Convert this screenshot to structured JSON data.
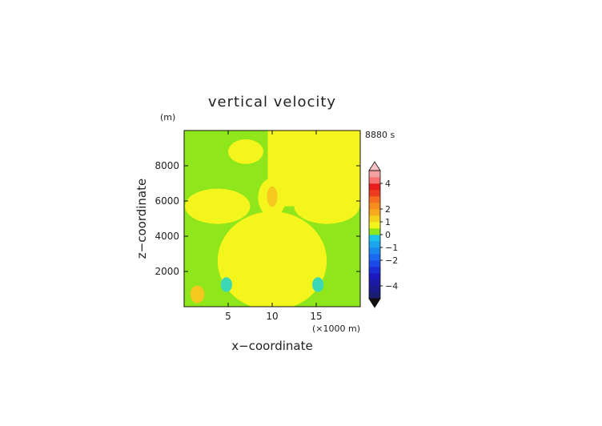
{
  "chart_data": {
    "type": "heatmap",
    "title": "vertical velocity",
    "time_label": "8880 s",
    "xlabel": "x−coordinate",
    "ylabel": "z−coordinate",
    "x_unit": "(×1000 m)",
    "y_unit": "(m)",
    "xlim": [
      0,
      20
    ],
    "ylim": [
      0,
      10000
    ],
    "x_ticks": [
      {
        "value": 5,
        "label": "5"
      },
      {
        "value": 10,
        "label": "10"
      },
      {
        "value": 15,
        "label": "15"
      }
    ],
    "y_ticks": [
      {
        "value": 2000,
        "label": "2000"
      },
      {
        "value": 4000,
        "label": "4000"
      },
      {
        "value": 6000,
        "label": "6000"
      },
      {
        "value": 8000,
        "label": "8000"
      }
    ],
    "background_color": "#8fe61a",
    "regions": [
      {
        "level": "0 to 0.5",
        "color": "#f5f51e",
        "shape": "rect",
        "x": [
          9.5,
          20
        ],
        "z": [
          5700,
          10000
        ]
      },
      {
        "level": "0 to 0.5",
        "color": "#f5f51e",
        "shape": "ellipse",
        "cx": 10,
        "cz": 2600,
        "rx": 6.2,
        "rz": 2800
      },
      {
        "level": "0 to 0.5",
        "color": "#f5f51e",
        "shape": "ellipse",
        "cx": 3.8,
        "cz": 5700,
        "rx": 3.7,
        "rz": 1000
      },
      {
        "level": "0 to 0.5",
        "color": "#f5f51e",
        "shape": "ellipse",
        "cx": 16.2,
        "cz": 5700,
        "rx": 3.7,
        "rz": 1000
      },
      {
        "level": "0 to 0.5",
        "color": "#f5f51e",
        "shape": "ellipse",
        "cx": 10,
        "cz": 6200,
        "rx": 1.6,
        "rz": 1100
      },
      {
        "level": "0 to 0.5",
        "color": "#f5f51e",
        "shape": "ellipse",
        "cx": 7,
        "cz": 8800,
        "rx": 2,
        "rz": 700
      },
      {
        "level": "0 to 0.5",
        "color": "#f5f51e",
        "shape": "ellipse",
        "cx": 13,
        "cz": 8800,
        "rx": 2,
        "rz": 700
      },
      {
        "level": "0 to 0.5",
        "color": "#f5f51e",
        "shape": "ellipse",
        "cx": 18.6,
        "cz": 8300,
        "rx": 1.2,
        "rz": 900
      },
      {
        "level": "0.5 to 1",
        "color": "#f5c81e",
        "shape": "ellipse",
        "cx": 10,
        "cz": 6250,
        "rx": 0.6,
        "rz": 580
      },
      {
        "level": "0.5 to 1",
        "color": "#f5c81e",
        "shape": "ellipse",
        "cx": 1.5,
        "cz": 700,
        "rx": 0.8,
        "rz": 500
      },
      {
        "level": "-0.5 to 0",
        "color": "#3cd7b4",
        "shape": "ellipse",
        "cx": 4.8,
        "cz": 1250,
        "rx": 0.65,
        "rz": 420
      },
      {
        "level": "-0.5 to 0",
        "color": "#3cd7b4",
        "shape": "ellipse",
        "cx": 15.2,
        "cz": 1250,
        "rx": 0.65,
        "rz": 420
      }
    ],
    "colorbar": {
      "range": [
        -5,
        5
      ],
      "step": 0.5,
      "labels": [
        {
          "value": 4,
          "label": "4"
        },
        {
          "value": 2,
          "label": "2"
        },
        {
          "value": 1,
          "label": "1"
        },
        {
          "value": 0,
          "label": "0"
        },
        {
          "value": -1,
          "label": "−1"
        },
        {
          "value": -2,
          "label": "−2"
        },
        {
          "value": -4,
          "label": "−4"
        }
      ],
      "colors": [
        "#1a1a6e",
        "#1a1a8c",
        "#1a1aa5",
        "#1a1abe",
        "#1a2dd7",
        "#1a4be6",
        "#1a69ee",
        "#1a87f0",
        "#1aa5ee",
        "#1ec3e6",
        "#8fe61a",
        "#f5f51e",
        "#f5d21e",
        "#f5aa1e",
        "#f58c1e",
        "#f56e1e",
        "#f03c1e",
        "#e61e1e",
        "#f57373",
        "#f5a0a0"
      ],
      "over_color": "#f5c3c3",
      "under_color": "#101010"
    }
  }
}
